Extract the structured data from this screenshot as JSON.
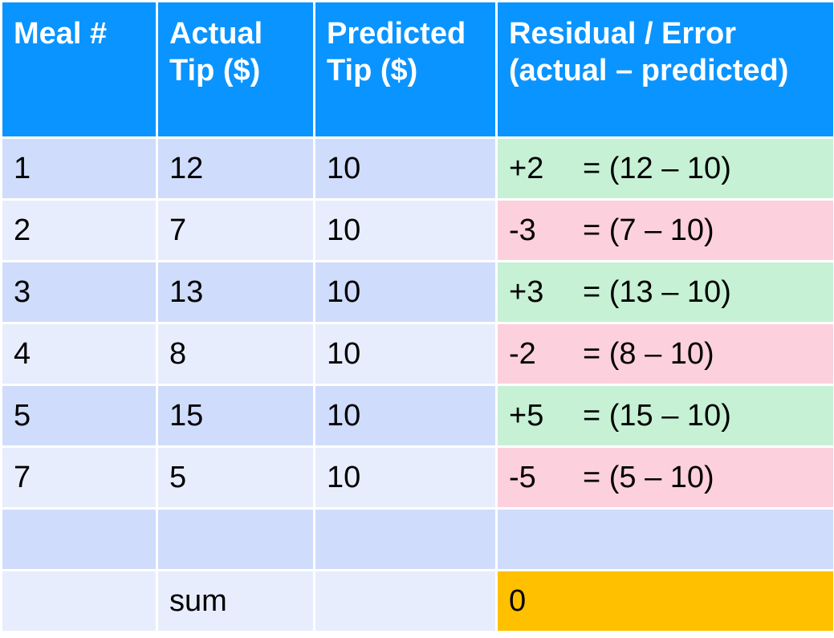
{
  "table": {
    "headers": {
      "meal": "Meal #",
      "actual_line1": "Actual",
      "actual_line2": "Tip ($)",
      "predicted_line1": "Predicted",
      "predicted_line2": "Tip ($)",
      "residual_line1": "Residual / Error",
      "residual_line2": "(actual – predicted)"
    },
    "rows": [
      {
        "meal": "1",
        "actual": "12",
        "predicted": "10",
        "residual": "+2",
        "formula": "= (12 – 10)",
        "sign": "positive"
      },
      {
        "meal": "2",
        "actual": "7",
        "predicted": "10",
        "residual": "-3",
        "formula": "= (7 – 10)",
        "sign": "negative"
      },
      {
        "meal": "3",
        "actual": "13",
        "predicted": "10",
        "residual": "+3",
        "formula": "= (13 – 10)",
        "sign": "positive"
      },
      {
        "meal": "4",
        "actual": "8",
        "predicted": "10",
        "residual": "-2",
        "formula": "= (8 – 10)",
        "sign": "negative"
      },
      {
        "meal": "5",
        "actual": "15",
        "predicted": "10",
        "residual": "+5",
        "formula": "= (15 – 10)",
        "sign": "positive"
      },
      {
        "meal": "7",
        "actual": "5",
        "predicted": "10",
        "residual": "-5",
        "formula": "= (5 – 10)",
        "sign": "negative"
      }
    ],
    "sum_row": {
      "label": "sum",
      "total": "0"
    }
  },
  "colors": {
    "header": "#0a94ff",
    "row_band_dark": "#cfdcfb",
    "row_band_light": "#e8edfd",
    "positive_residual": "#c6f1d5",
    "negative_residual": "#fdd0dd",
    "sum_highlight": "#ffc000"
  }
}
